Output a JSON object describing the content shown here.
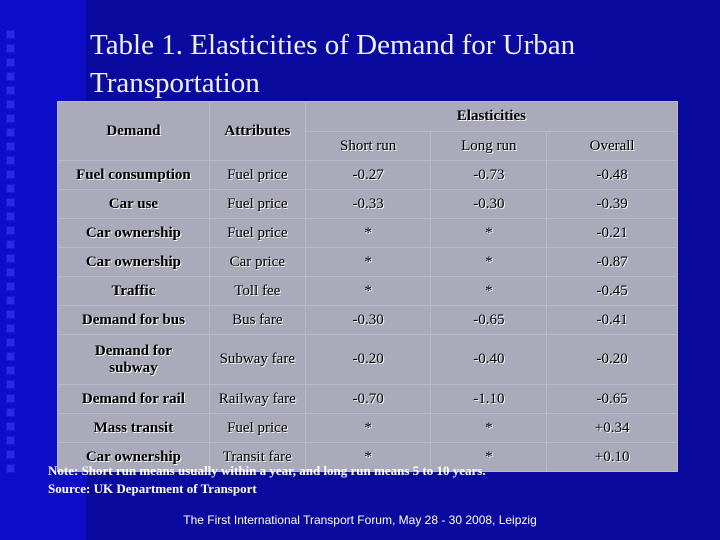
{
  "title": "Table 1. Elasticities of Demand for Urban Transportation",
  "table": {
    "headers": {
      "demand": "Demand",
      "attributes": "Attributes",
      "elasticities": "Elasticities",
      "short_run": "Short run",
      "long_run": "Long run",
      "overall": "Overall"
    },
    "rows": [
      {
        "demand": "Fuel consumption",
        "attribute": "Fuel price",
        "short": "-0.27",
        "long": "-0.73",
        "overall": "-0.48"
      },
      {
        "demand": "Car use",
        "attribute": "Fuel price",
        "short": "-0.33",
        "long": "-0.30",
        "overall": "-0.39"
      },
      {
        "demand": "Car ownership",
        "attribute": "Fuel price",
        "short": "*",
        "long": "*",
        "overall": "-0.21"
      },
      {
        "demand": "Car ownership",
        "attribute": "Car price",
        "short": "*",
        "long": "*",
        "overall": "-0.87"
      },
      {
        "demand": "Traffic",
        "attribute": "Toll fee",
        "short": "*",
        "long": "*",
        "overall": "-0.45"
      },
      {
        "demand": "Demand for bus",
        "attribute": "Bus fare",
        "short": "-0.30",
        "long": "-0.65",
        "overall": "-0.41"
      },
      {
        "demand": "Demand for subway",
        "attribute": "Subway fare",
        "short": "-0.20",
        "long": "-0.40",
        "overall": "-0.20"
      },
      {
        "demand": "Demand for rail",
        "attribute": "Railway fare",
        "short": "-0.70",
        "long": "-1.10",
        "overall": "-0.65"
      },
      {
        "demand": "Mass transit",
        "attribute": "Fuel price",
        "short": "*",
        "long": "*",
        "overall": "+0.34"
      },
      {
        "demand": "Car ownership",
        "attribute": "Transit fare",
        "short": "*",
        "long": "*",
        "overall": "+0.10"
      }
    ]
  },
  "note": "Note: Short run means usually within a year, and long run means 5 to 10 years.",
  "source": "Source: UK Department of Transport",
  "footer": "The First International Transport Forum, May 28 - 30  2008,  Leipzig"
}
